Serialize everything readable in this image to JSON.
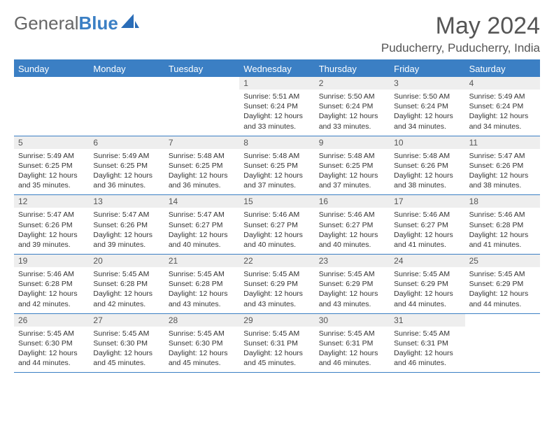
{
  "logo": {
    "word1": "General",
    "word2": "Blue"
  },
  "title": "May 2024",
  "location": "Puducherry, Puducherry, India",
  "header_bg": "#3b7fc4",
  "day_names": [
    "Sunday",
    "Monday",
    "Tuesday",
    "Wednesday",
    "Thursday",
    "Friday",
    "Saturday"
  ],
  "weeks": [
    [
      null,
      null,
      null,
      {
        "n": "1",
        "sr": "5:51 AM",
        "ss": "6:24 PM",
        "dl": "12 hours and 33 minutes."
      },
      {
        "n": "2",
        "sr": "5:50 AM",
        "ss": "6:24 PM",
        "dl": "12 hours and 33 minutes."
      },
      {
        "n": "3",
        "sr": "5:50 AM",
        "ss": "6:24 PM",
        "dl": "12 hours and 34 minutes."
      },
      {
        "n": "4",
        "sr": "5:49 AM",
        "ss": "6:24 PM",
        "dl": "12 hours and 34 minutes."
      }
    ],
    [
      {
        "n": "5",
        "sr": "5:49 AM",
        "ss": "6:25 PM",
        "dl": "12 hours and 35 minutes."
      },
      {
        "n": "6",
        "sr": "5:49 AM",
        "ss": "6:25 PM",
        "dl": "12 hours and 36 minutes."
      },
      {
        "n": "7",
        "sr": "5:48 AM",
        "ss": "6:25 PM",
        "dl": "12 hours and 36 minutes."
      },
      {
        "n": "8",
        "sr": "5:48 AM",
        "ss": "6:25 PM",
        "dl": "12 hours and 37 minutes."
      },
      {
        "n": "9",
        "sr": "5:48 AM",
        "ss": "6:25 PM",
        "dl": "12 hours and 37 minutes."
      },
      {
        "n": "10",
        "sr": "5:48 AM",
        "ss": "6:26 PM",
        "dl": "12 hours and 38 minutes."
      },
      {
        "n": "11",
        "sr": "5:47 AM",
        "ss": "6:26 PM",
        "dl": "12 hours and 38 minutes."
      }
    ],
    [
      {
        "n": "12",
        "sr": "5:47 AM",
        "ss": "6:26 PM",
        "dl": "12 hours and 39 minutes."
      },
      {
        "n": "13",
        "sr": "5:47 AM",
        "ss": "6:26 PM",
        "dl": "12 hours and 39 minutes."
      },
      {
        "n": "14",
        "sr": "5:47 AM",
        "ss": "6:27 PM",
        "dl": "12 hours and 40 minutes."
      },
      {
        "n": "15",
        "sr": "5:46 AM",
        "ss": "6:27 PM",
        "dl": "12 hours and 40 minutes."
      },
      {
        "n": "16",
        "sr": "5:46 AM",
        "ss": "6:27 PM",
        "dl": "12 hours and 40 minutes."
      },
      {
        "n": "17",
        "sr": "5:46 AM",
        "ss": "6:27 PM",
        "dl": "12 hours and 41 minutes."
      },
      {
        "n": "18",
        "sr": "5:46 AM",
        "ss": "6:28 PM",
        "dl": "12 hours and 41 minutes."
      }
    ],
    [
      {
        "n": "19",
        "sr": "5:46 AM",
        "ss": "6:28 PM",
        "dl": "12 hours and 42 minutes."
      },
      {
        "n": "20",
        "sr": "5:45 AM",
        "ss": "6:28 PM",
        "dl": "12 hours and 42 minutes."
      },
      {
        "n": "21",
        "sr": "5:45 AM",
        "ss": "6:28 PM",
        "dl": "12 hours and 43 minutes."
      },
      {
        "n": "22",
        "sr": "5:45 AM",
        "ss": "6:29 PM",
        "dl": "12 hours and 43 minutes."
      },
      {
        "n": "23",
        "sr": "5:45 AM",
        "ss": "6:29 PM",
        "dl": "12 hours and 43 minutes."
      },
      {
        "n": "24",
        "sr": "5:45 AM",
        "ss": "6:29 PM",
        "dl": "12 hours and 44 minutes."
      },
      {
        "n": "25",
        "sr": "5:45 AM",
        "ss": "6:29 PM",
        "dl": "12 hours and 44 minutes."
      }
    ],
    [
      {
        "n": "26",
        "sr": "5:45 AM",
        "ss": "6:30 PM",
        "dl": "12 hours and 44 minutes."
      },
      {
        "n": "27",
        "sr": "5:45 AM",
        "ss": "6:30 PM",
        "dl": "12 hours and 45 minutes."
      },
      {
        "n": "28",
        "sr": "5:45 AM",
        "ss": "6:30 PM",
        "dl": "12 hours and 45 minutes."
      },
      {
        "n": "29",
        "sr": "5:45 AM",
        "ss": "6:31 PM",
        "dl": "12 hours and 45 minutes."
      },
      {
        "n": "30",
        "sr": "5:45 AM",
        "ss": "6:31 PM",
        "dl": "12 hours and 46 minutes."
      },
      {
        "n": "31",
        "sr": "5:45 AM",
        "ss": "6:31 PM",
        "dl": "12 hours and 46 minutes."
      },
      null
    ]
  ],
  "labels": {
    "sunrise": "Sunrise:",
    "sunset": "Sunset:",
    "daylight": "Daylight:"
  }
}
